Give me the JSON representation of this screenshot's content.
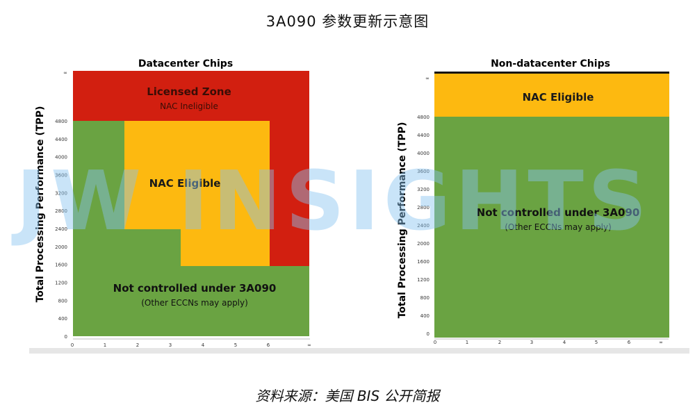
{
  "page": {
    "title": "3A090 参数更新示意图",
    "source": "资料来源：美国 BIS 公开简报",
    "watermark": "JW INSIGHTS"
  },
  "colors": {
    "red": "#d21f10",
    "yellow": "#fdb910",
    "green": "#6aa342",
    "watermark": "rgba(135, 195, 240, 0.5)"
  },
  "chart_data": [
    {
      "type": "area",
      "title": "Datacenter Chips",
      "ylabel": "Total Processing Performance (TPP)",
      "xlabel": "",
      "x_ticks": [
        "0",
        "1",
        "2",
        "3",
        "4",
        "5",
        "6",
        "∞"
      ],
      "y_ticks": [
        "0",
        "400",
        "800",
        "1200",
        "1600",
        "2000",
        "2400",
        "2800",
        "3200",
        "3600",
        "4000",
        "4400",
        "4800",
        "∞"
      ],
      "zones": [
        {
          "name": "Licensed Zone",
          "sublabel": "NAC Ineligible",
          "color": "red"
        },
        {
          "name": "NAC Eligible",
          "sublabel": "",
          "color": "yellow"
        },
        {
          "name": "Not controlled under 3A090",
          "sublabel": "(Other ECCNs may apply)",
          "color": "green"
        }
      ]
    },
    {
      "type": "area",
      "title": "Non-datacenter Chips",
      "ylabel": "Total Processing Performance (TPP)",
      "xlabel": "",
      "x_ticks": [
        "0",
        "1",
        "2",
        "3",
        "4",
        "5",
        "6",
        "∞"
      ],
      "y_ticks": [
        "0",
        "400",
        "800",
        "1200",
        "1600",
        "2000",
        "2400",
        "2800",
        "3200",
        "3600",
        "4000",
        "4400",
        "4800",
        "∞"
      ],
      "zones": [
        {
          "name": "NAC Eligible",
          "sublabel": "",
          "color": "yellow"
        },
        {
          "name": "Not controlled under 3A090",
          "sublabel": "(Other ECCNs may apply)",
          "color": "green"
        }
      ]
    }
  ]
}
